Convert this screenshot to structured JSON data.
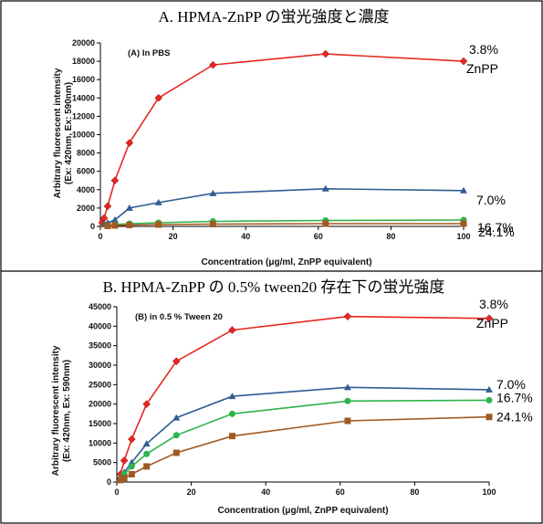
{
  "colors": {
    "red": "#e8261f",
    "blue": "#2f5d93",
    "green": "#2db34a",
    "brown": "#a05a22"
  },
  "chart_data": [
    {
      "type": "line",
      "title": "A. HPMA-ZnPP の蛍光強度と濃度",
      "panel_label": "(A) In PBS",
      "xlabel": "Concentration (μg/ml, ZnPP equivalent)",
      "ylabel": "Arbitrary fluorescent intensity",
      "ylabel2": "(Ex: 420nm, Ex: 590nm)",
      "xlim": [
        0,
        100
      ],
      "ylim": [
        0,
        20000
      ],
      "x_ticks": [
        "0",
        "20",
        "40",
        "60",
        "80",
        "100"
      ],
      "y_ticks": [
        "0",
        "2000",
        "4000",
        "6000",
        "8000",
        "10000",
        "12000",
        "14000",
        "16000",
        "18000",
        "20000"
      ],
      "grid": false,
      "series": [
        {
          "name": "3.8%",
          "name2": "ZnPP",
          "marker": "diamond",
          "x": [
            0,
            0.5,
            1,
            2,
            4,
            8,
            16,
            31,
            62,
            100
          ],
          "y": [
            0,
            400,
            900,
            2200,
            5000,
            9100,
            14000,
            17600,
            18800,
            18000
          ]
        },
        {
          "name": "7.0%",
          "marker": "triangle",
          "x": [
            0,
            1,
            2,
            4,
            8,
            16,
            31,
            62,
            100
          ],
          "y": [
            0,
            200,
            400,
            700,
            2000,
            2600,
            3600,
            4100,
            3900
          ]
        },
        {
          "name": "16.7%",
          "marker": "circle",
          "x": [
            0,
            2,
            4,
            8,
            16,
            31,
            62,
            100
          ],
          "y": [
            0,
            100,
            200,
            300,
            400,
            550,
            650,
            700
          ]
        },
        {
          "name": "24.1%",
          "marker": "square",
          "x": [
            0,
            2,
            4,
            8,
            16,
            31,
            62,
            100
          ],
          "y": [
            0,
            50,
            100,
            150,
            200,
            250,
            300,
            300
          ]
        }
      ]
    },
    {
      "type": "line",
      "title": "B. HPMA-ZnPP の 0.5% tween20 存在下の蛍光強度",
      "panel_label": "(B) in 0.5 % Tween 20",
      "xlabel": "Concentration (μg/ml, ZnPP equivalent)",
      "ylabel": "Arbitrary fluorescent intensity",
      "ylabel2": "(Ex: 420nm, Ex: 590nm)",
      "xlim": [
        0,
        100
      ],
      "ylim": [
        0,
        45000
      ],
      "x_ticks": [
        "0",
        "20",
        "40",
        "60",
        "80",
        "100"
      ],
      "y_ticks": [
        "0",
        "5000",
        "10000",
        "15000",
        "20000",
        "25000",
        "30000",
        "35000",
        "40000",
        "45000"
      ],
      "grid": false,
      "series": [
        {
          "name": "3.8%",
          "name2": "ZnPP",
          "marker": "diamond",
          "x": [
            0,
            1,
            2,
            4,
            8,
            16,
            31,
            62,
            100
          ],
          "y": [
            0,
            2000,
            5500,
            11000,
            20000,
            31000,
            39000,
            42500,
            42000
          ]
        },
        {
          "name": "7.0%",
          "marker": "triangle",
          "x": [
            0,
            1,
            2,
            4,
            8,
            16,
            31,
            62,
            100
          ],
          "y": [
            0,
            1000,
            2500,
            5000,
            9800,
            16500,
            22000,
            24300,
            23700
          ]
        },
        {
          "name": "16.7%",
          "marker": "circle",
          "x": [
            0,
            1,
            2,
            4,
            8,
            16,
            31,
            62,
            100
          ],
          "y": [
            0,
            800,
            2000,
            4000,
            7200,
            12000,
            17500,
            20800,
            21000
          ]
        },
        {
          "name": "24.1%",
          "marker": "square",
          "x": [
            0,
            1,
            2,
            4,
            8,
            16,
            31,
            62,
            100
          ],
          "y": [
            0,
            500,
            1000,
            2000,
            4000,
            7500,
            11800,
            15700,
            16700
          ]
        }
      ]
    }
  ]
}
